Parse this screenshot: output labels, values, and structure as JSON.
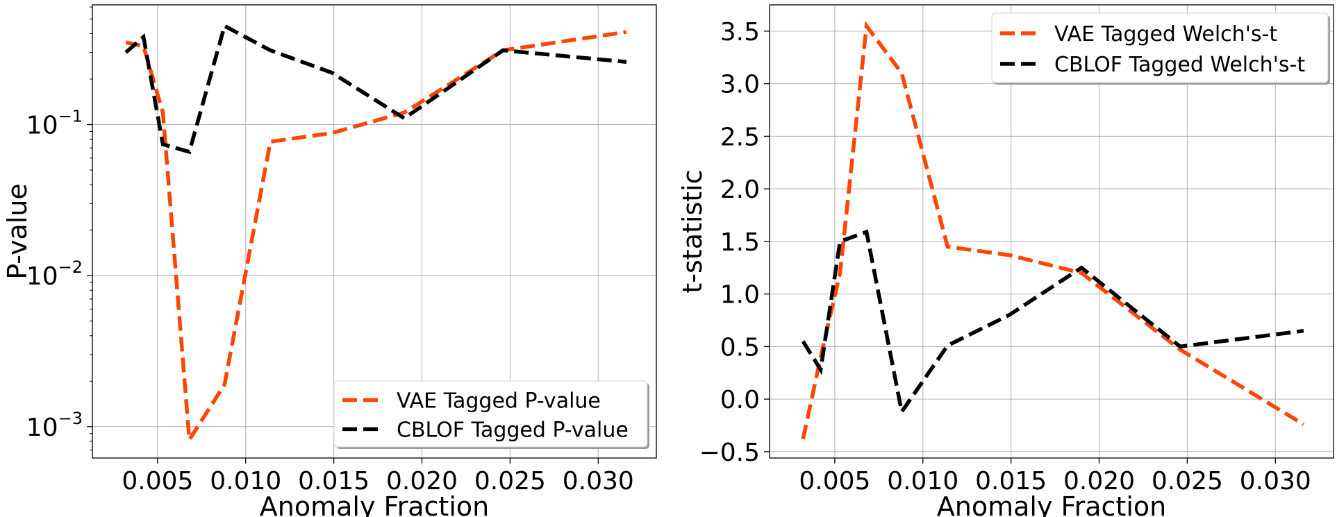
{
  "chart_data": [
    {
      "type": "line",
      "xlabel": "Anomaly Fraction",
      "ylabel": "P-value",
      "yscale": "log",
      "xlim": [
        0.0013,
        0.0333
      ],
      "ylim": [
        0.00062,
        0.62
      ],
      "xticks": [
        0.005,
        0.01,
        0.015,
        0.02,
        0.025,
        0.03
      ],
      "xtick_labels": [
        "0.005",
        "0.010",
        "0.015",
        "0.020",
        "0.025",
        "0.030"
      ],
      "yticks": [
        0.001,
        0.01,
        0.1
      ],
      "ytick_base": [
        "10",
        "10",
        "10"
      ],
      "ytick_exp": [
        "−3",
        "−2",
        "−1"
      ],
      "grid": true,
      "legend_position": "lower-right",
      "series": [
        {
          "name": "VAE Tagged P-value",
          "color": "#ff4500",
          "x": [
            0.0032,
            0.0042,
            0.0053,
            0.0068,
            0.0088,
            0.0114,
            0.0149,
            0.019,
            0.0246,
            0.0316
          ],
          "y": [
            0.35,
            0.33,
            0.12,
            0.00082,
            0.0019,
            0.077,
            0.088,
            0.12,
            0.31,
            0.41
          ]
        },
        {
          "name": "CBLOF Tagged P-value",
          "color": "#000000",
          "x": [
            0.0032,
            0.0042,
            0.0053,
            0.0068,
            0.0088,
            0.0114,
            0.0149,
            0.019,
            0.0246,
            0.0316
          ],
          "y": [
            0.3,
            0.38,
            0.074,
            0.066,
            0.45,
            0.31,
            0.22,
            0.11,
            0.31,
            0.26
          ]
        }
      ]
    },
    {
      "type": "line",
      "xlabel": "Anomaly Fraction",
      "ylabel": "t-statistic",
      "yscale": "linear",
      "xlim": [
        0.0013,
        0.0333
      ],
      "ylim": [
        -0.56,
        3.75
      ],
      "xticks": [
        0.005,
        0.01,
        0.015,
        0.02,
        0.025,
        0.03
      ],
      "xtick_labels": [
        "0.005",
        "0.010",
        "0.015",
        "0.020",
        "0.025",
        "0.030"
      ],
      "yticks": [
        -0.5,
        0.0,
        0.5,
        1.0,
        1.5,
        2.0,
        2.5,
        3.0,
        3.5
      ],
      "ytick_labels": [
        "−0.5",
        "0.0",
        "0.5",
        "1.0",
        "1.5",
        "2.0",
        "2.5",
        "3.0",
        "3.5"
      ],
      "grid": true,
      "legend_position": "upper-right",
      "series": [
        {
          "name": "VAE Tagged Welch's-t",
          "color": "#ff4500",
          "x": [
            0.0032,
            0.0042,
            0.0053,
            0.0068,
            0.0088,
            0.0114,
            0.0149,
            0.019,
            0.0246,
            0.0316
          ],
          "y": [
            -0.38,
            0.4,
            1.2,
            3.55,
            3.1,
            1.45,
            1.37,
            1.2,
            0.47,
            -0.24
          ]
        },
        {
          "name": "CBLOF Tagged Welch's-t",
          "color": "#000000",
          "x": [
            0.0032,
            0.0042,
            0.0053,
            0.0068,
            0.0088,
            0.0114,
            0.0149,
            0.019,
            0.0246,
            0.0316
          ],
          "y": [
            0.55,
            0.28,
            1.5,
            1.59,
            -0.12,
            0.51,
            0.8,
            1.25,
            0.5,
            0.65
          ]
        }
      ]
    }
  ]
}
